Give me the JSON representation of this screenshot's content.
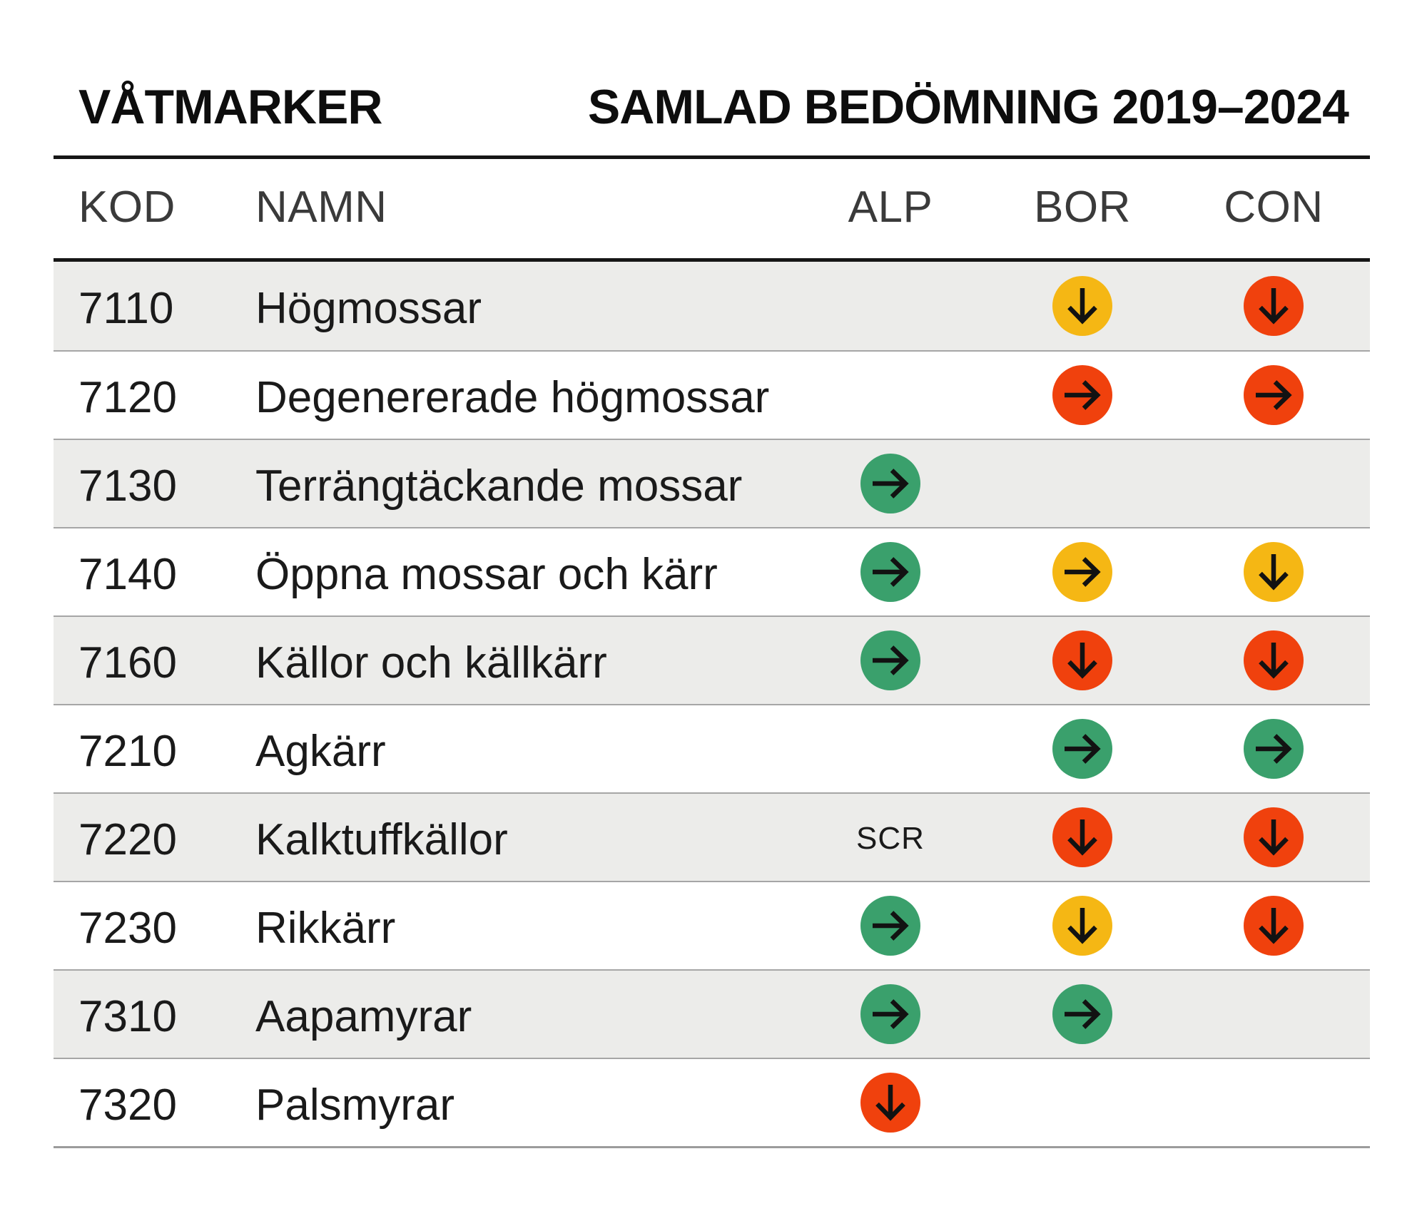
{
  "chart_data": {
    "type": "table",
    "title": "VÅTMARKER",
    "subtitle": "SAMLAD BEDÖMNING 2019–2024",
    "columns": [
      "KOD",
      "NAMN",
      "ALP",
      "BOR",
      "CON"
    ],
    "rows": [
      {
        "kod": "7110",
        "namn": "Högmossar",
        "alp": null,
        "bor": {
          "arrow": "down",
          "color": "yellow"
        },
        "con": {
          "arrow": "down",
          "color": "red"
        }
      },
      {
        "kod": "7120",
        "namn": "Degenererade högmossar",
        "alp": null,
        "bor": {
          "arrow": "right",
          "color": "red"
        },
        "con": {
          "arrow": "right",
          "color": "red"
        }
      },
      {
        "kod": "7130",
        "namn": "Terrängtäckande mossar",
        "alp": {
          "arrow": "right",
          "color": "green"
        },
        "bor": null,
        "con": null
      },
      {
        "kod": "7140",
        "namn": "Öppna mossar och kärr",
        "alp": {
          "arrow": "right",
          "color": "green"
        },
        "bor": {
          "arrow": "right",
          "color": "yellow"
        },
        "con": {
          "arrow": "down",
          "color": "yellow"
        }
      },
      {
        "kod": "7160",
        "namn": "Källor och källkärr",
        "alp": {
          "arrow": "right",
          "color": "green"
        },
        "bor": {
          "arrow": "down",
          "color": "red"
        },
        "con": {
          "arrow": "down",
          "color": "red"
        }
      },
      {
        "kod": "7210",
        "namn": "Agkärr",
        "alp": null,
        "bor": {
          "arrow": "right",
          "color": "green"
        },
        "con": {
          "arrow": "right",
          "color": "green"
        }
      },
      {
        "kod": "7220",
        "namn": "Kalktuffkällor",
        "alp": {
          "text": "SCR"
        },
        "bor": {
          "arrow": "down",
          "color": "red"
        },
        "con": {
          "arrow": "down",
          "color": "red"
        }
      },
      {
        "kod": "7230",
        "namn": "Rikkärr",
        "alp": {
          "arrow": "right",
          "color": "green"
        },
        "bor": {
          "arrow": "down",
          "color": "yellow"
        },
        "con": {
          "arrow": "down",
          "color": "red"
        }
      },
      {
        "kod": "7310",
        "namn": "Aapamyrar",
        "alp": {
          "arrow": "right",
          "color": "green"
        },
        "bor": {
          "arrow": "right",
          "color": "green"
        },
        "con": null
      },
      {
        "kod": "7320",
        "namn": "Palsmyrar",
        "alp": {
          "arrow": "down",
          "color": "red"
        },
        "bor": null,
        "con": null
      }
    ],
    "legend_hint": "arrow icons: circle color = status (green/yellow/red), arrow direction = trend (right = stable, down = deteriorating)"
  },
  "status_colors": {
    "green": "#3AA06C",
    "yellow": "#F5B714",
    "red": "#F0410D"
  },
  "styles": {
    "row_alt_background": "#ECECEA",
    "arrow_stroke": "#121212",
    "rule_color": "#161616",
    "separator_color": "#A6A6A6"
  }
}
